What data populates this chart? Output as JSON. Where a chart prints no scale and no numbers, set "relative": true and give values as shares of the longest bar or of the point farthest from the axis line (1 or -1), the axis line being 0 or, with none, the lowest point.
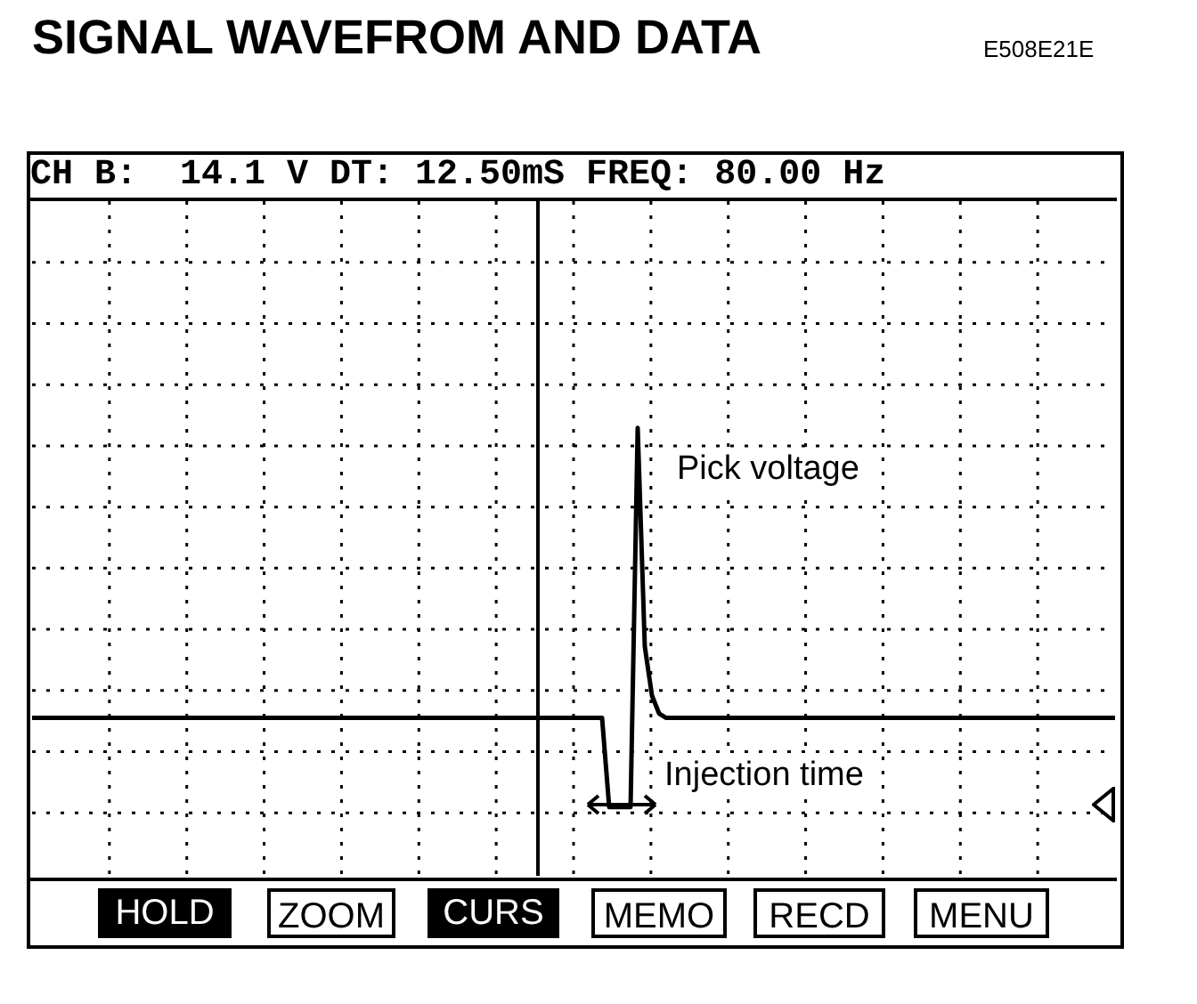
{
  "chart_data": {
    "type": "line",
    "title": "SIGNAL WAVEFROM AND DATA",
    "subtitle": "CH B:  14.1 V DT: 12.50mS FREQ: 80.00 Hz",
    "annotations": [
      "E508E21E",
      "Pick voltage",
      "Injection time",
      "HOLD",
      "ZOOM",
      "CURS",
      "MEMO",
      "RECD",
      "MENU"
    ],
    "relative": true,
    "grid": true,
    "legend": false,
    "marker": "none",
    "line_style": "solid",
    "categories": [
      null,
      null,
      null,
      null,
      null,
      null,
      null,
      null,
      null,
      null,
      null,
      null,
      null,
      null,
      null,
      null,
      null,
      null,
      null,
      null,
      null,
      null,
      null,
      null,
      null,
      null,
      null,
      null,
      null,
      null,
      null,
      null,
      null,
      null,
      null,
      null,
      null,
      null,
      null,
      null,
      null,
      null,
      null,
      null,
      null,
      null,
      null,
      null,
      null,
      null,
      null,
      null,
      null,
      null,
      null,
      null,
      null,
      null,
      null,
      null,
      null,
      null,
      null,
      null,
      null,
      null,
      null,
      null,
      null,
      null,
      null,
      null,
      null,
      null,
      null,
      null,
      null,
      null,
      null,
      null,
      null,
      null,
      null,
      null,
      null,
      null,
      null,
      null,
      null,
      null,
      null,
      null,
      null,
      null,
      null,
      null,
      null,
      null,
      null,
      null,
      null,
      null,
      null,
      null,
      null,
      null,
      null,
      null,
      null,
      null,
      null,
      null,
      null,
      null,
      null,
      null,
      null,
      null,
      null,
      null,
      null,
      null,
      null,
      null,
      null,
      null,
      null,
      null,
      null,
      null,
      null,
      null,
      null,
      null,
      null,
      null,
      null,
      null,
      null,
      null,
      null,
      null,
      null,
      null,
      null,
      null,
      null,
      null,
      null,
      null,
      null,
      null,
      null
    ],
    "series": [
      {
        "color": "#000000",
        "values": [
          0.35,
          0.35,
          0.35,
          0.35,
          0.35,
          0.35,
          0.35,
          0.35,
          0.35,
          0.35,
          0.35,
          0.35,
          0.35,
          0.35,
          0.35,
          0.35,
          0.35,
          0.35,
          0.35,
          0.35,
          0.35,
          0.35,
          0.35,
          0.35,
          0.35,
          0.35,
          0.35,
          0.35,
          0.35,
          0.35,
          0.35,
          0.35,
          0.35,
          0.35,
          0.35,
          0.35,
          0.35,
          0.35,
          0.35,
          0.35,
          0.35,
          0.35,
          0.35,
          0.35,
          0.35,
          0.35,
          0.35,
          0.35,
          0.35,
          0.35,
          0.35,
          0.35,
          0.35,
          0.35,
          0.35,
          0.35,
          0.35,
          0.35,
          0.35,
          0.35,
          0.35,
          0.35,
          0.35,
          0.35,
          0.35,
          0.35,
          0.35,
          0.35,
          0.35,
          0.35,
          0.35,
          0.35,
          0.35,
          0.35,
          0.35,
          0.35,
          0.35,
          0.35,
          0.35,
          0.35,
          0.35,
          0.15,
          0.15,
          0.15,
          0.15,
          1,
          0.51,
          0.4,
          0.36,
          0.35,
          0.35,
          0.35,
          0.35,
          0.35,
          0.35,
          0.35,
          0.35,
          0.35,
          0.35,
          0.35,
          0.35,
          0.35,
          0.35,
          0.35,
          0.35,
          0.35,
          0.35,
          0.35,
          0.35,
          0.35,
          0.35,
          0.35,
          0.35,
          0.35,
          0.35,
          0.35,
          0.35,
          0.35,
          0.35,
          0.35,
          0.35,
          0.35,
          0.35,
          0.35,
          0.35,
          0.35,
          0.35,
          0.35,
          0.35,
          0.35,
          0.35,
          0.35,
          0.35,
          0.35,
          0.35,
          0.35,
          0.35,
          0.35,
          0.35,
          0.35,
          0.35,
          0.35,
          0.35,
          0.35,
          0.35,
          0.35,
          0.35,
          0.35,
          0.35,
          0.35,
          0.35,
          0.35,
          0.35
        ]
      }
    ]
  }
}
